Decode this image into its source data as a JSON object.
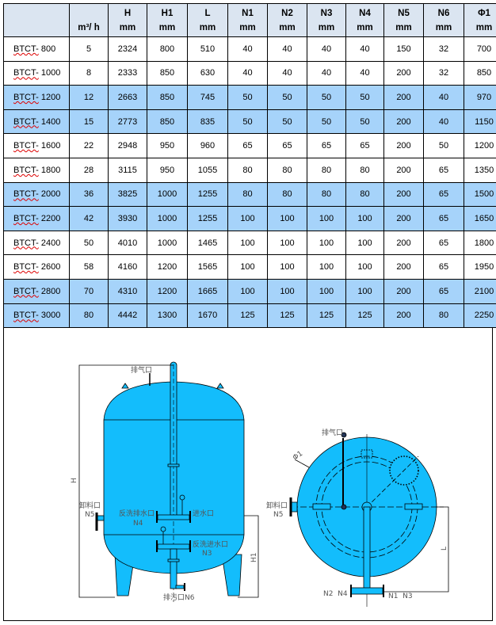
{
  "table": {
    "headers": [
      {
        "top": "",
        "bottom": ""
      },
      {
        "top": "",
        "bottom": "m³/ h"
      },
      {
        "top": "H",
        "bottom": "mm"
      },
      {
        "top": "H1",
        "bottom": "mm"
      },
      {
        "top": "L",
        "bottom": "mm"
      },
      {
        "top": "N1",
        "bottom": "mm"
      },
      {
        "top": "N2",
        "bottom": "mm"
      },
      {
        "top": "N3",
        "bottom": "mm"
      },
      {
        "top": "N4",
        "bottom": "mm"
      },
      {
        "top": "N5",
        "bottom": "mm"
      },
      {
        "top": "N6",
        "bottom": "mm"
      },
      {
        "top": "Φ1",
        "bottom": "mm"
      }
    ],
    "rows": [
      {
        "highlight": false,
        "model_prefix": "BTCT-",
        "model_size": "800",
        "cells": [
          "5",
          "2324",
          "800",
          "510",
          "40",
          "40",
          "40",
          "40",
          "150",
          "32",
          "700"
        ]
      },
      {
        "highlight": false,
        "model_prefix": "BTCT-",
        "model_size": "1000",
        "cells": [
          "8",
          "2333",
          "850",
          "630",
          "40",
          "40",
          "40",
          "40",
          "200",
          "32",
          "850"
        ]
      },
      {
        "highlight": true,
        "model_prefix": "BTCT-",
        "model_size": "1200",
        "cells": [
          "12",
          "2663",
          "850",
          "745",
          "50",
          "50",
          "50",
          "50",
          "200",
          "40",
          "970"
        ]
      },
      {
        "highlight": true,
        "model_prefix": "BTCT-",
        "model_size": "1400",
        "cells": [
          "15",
          "2773",
          "850",
          "835",
          "50",
          "50",
          "50",
          "50",
          "200",
          "40",
          "1150"
        ]
      },
      {
        "highlight": false,
        "model_prefix": "BTCT-",
        "model_size": "1600",
        "cells": [
          "22",
          "2948",
          "950",
          "960",
          "65",
          "65",
          "65",
          "65",
          "200",
          "50",
          "1200"
        ]
      },
      {
        "highlight": false,
        "model_prefix": "BTCT-",
        "model_size": "1800",
        "cells": [
          "28",
          "3115",
          "950",
          "1055",
          "80",
          "80",
          "80",
          "80",
          "200",
          "65",
          "1350"
        ]
      },
      {
        "highlight": true,
        "model_prefix": "BTCT-",
        "model_size": "2000",
        "cells": [
          "36",
          "3825",
          "1000",
          "1255",
          "80",
          "80",
          "80",
          "80",
          "200",
          "65",
          "1500"
        ]
      },
      {
        "highlight": true,
        "model_prefix": "BTCT-",
        "model_size": "2200",
        "cells": [
          "42",
          "3930",
          "1000",
          "1255",
          "100",
          "100",
          "100",
          "100",
          "200",
          "65",
          "1650"
        ]
      },
      {
        "highlight": false,
        "model_prefix": "BTCT-",
        "model_size": "2400",
        "cells": [
          "50",
          "4010",
          "1000",
          "1465",
          "100",
          "100",
          "100",
          "100",
          "200",
          "65",
          "1800"
        ]
      },
      {
        "highlight": false,
        "model_prefix": "BTCT-",
        "model_size": "2600",
        "cells": [
          "58",
          "4160",
          "1200",
          "1565",
          "100",
          "100",
          "100",
          "100",
          "200",
          "65",
          "1950"
        ]
      },
      {
        "highlight": true,
        "model_prefix": "BTCT-",
        "model_size": "2800",
        "cells": [
          "70",
          "4310",
          "1200",
          "1665",
          "100",
          "100",
          "100",
          "100",
          "200",
          "65",
          "2100"
        ]
      },
      {
        "highlight": true,
        "model_prefix": "BTCT-",
        "model_size": "3000",
        "cells": [
          "80",
          "4442",
          "1300",
          "1670",
          "125",
          "125",
          "125",
          "125",
          "200",
          "80",
          "2250"
        ]
      }
    ]
  },
  "diagram": {
    "colors": {
      "tank": "#13bdfc",
      "row_highlight": "#a6d3fa",
      "header": "#dbe5f1"
    },
    "front": {
      "vent": "排气口",
      "backwash_outlet": "反洗排水口",
      "backwash_outlet_code": "N4",
      "inlet": "进水口",
      "backwash_inlet": "反洗进水口",
      "backwash_inlet_code": "N3",
      "discharge": "卸料口",
      "discharge_code": "N5",
      "drain": "排污口N6",
      "dim_h": "H",
      "dim_h1": "H1"
    },
    "top": {
      "vent": "排气口",
      "discharge": "卸料口",
      "discharge_code": "N5",
      "phi": "Φ1",
      "left_codes": "N2  N4",
      "right_codes": "N1  N3",
      "dim_l": "L"
    }
  }
}
